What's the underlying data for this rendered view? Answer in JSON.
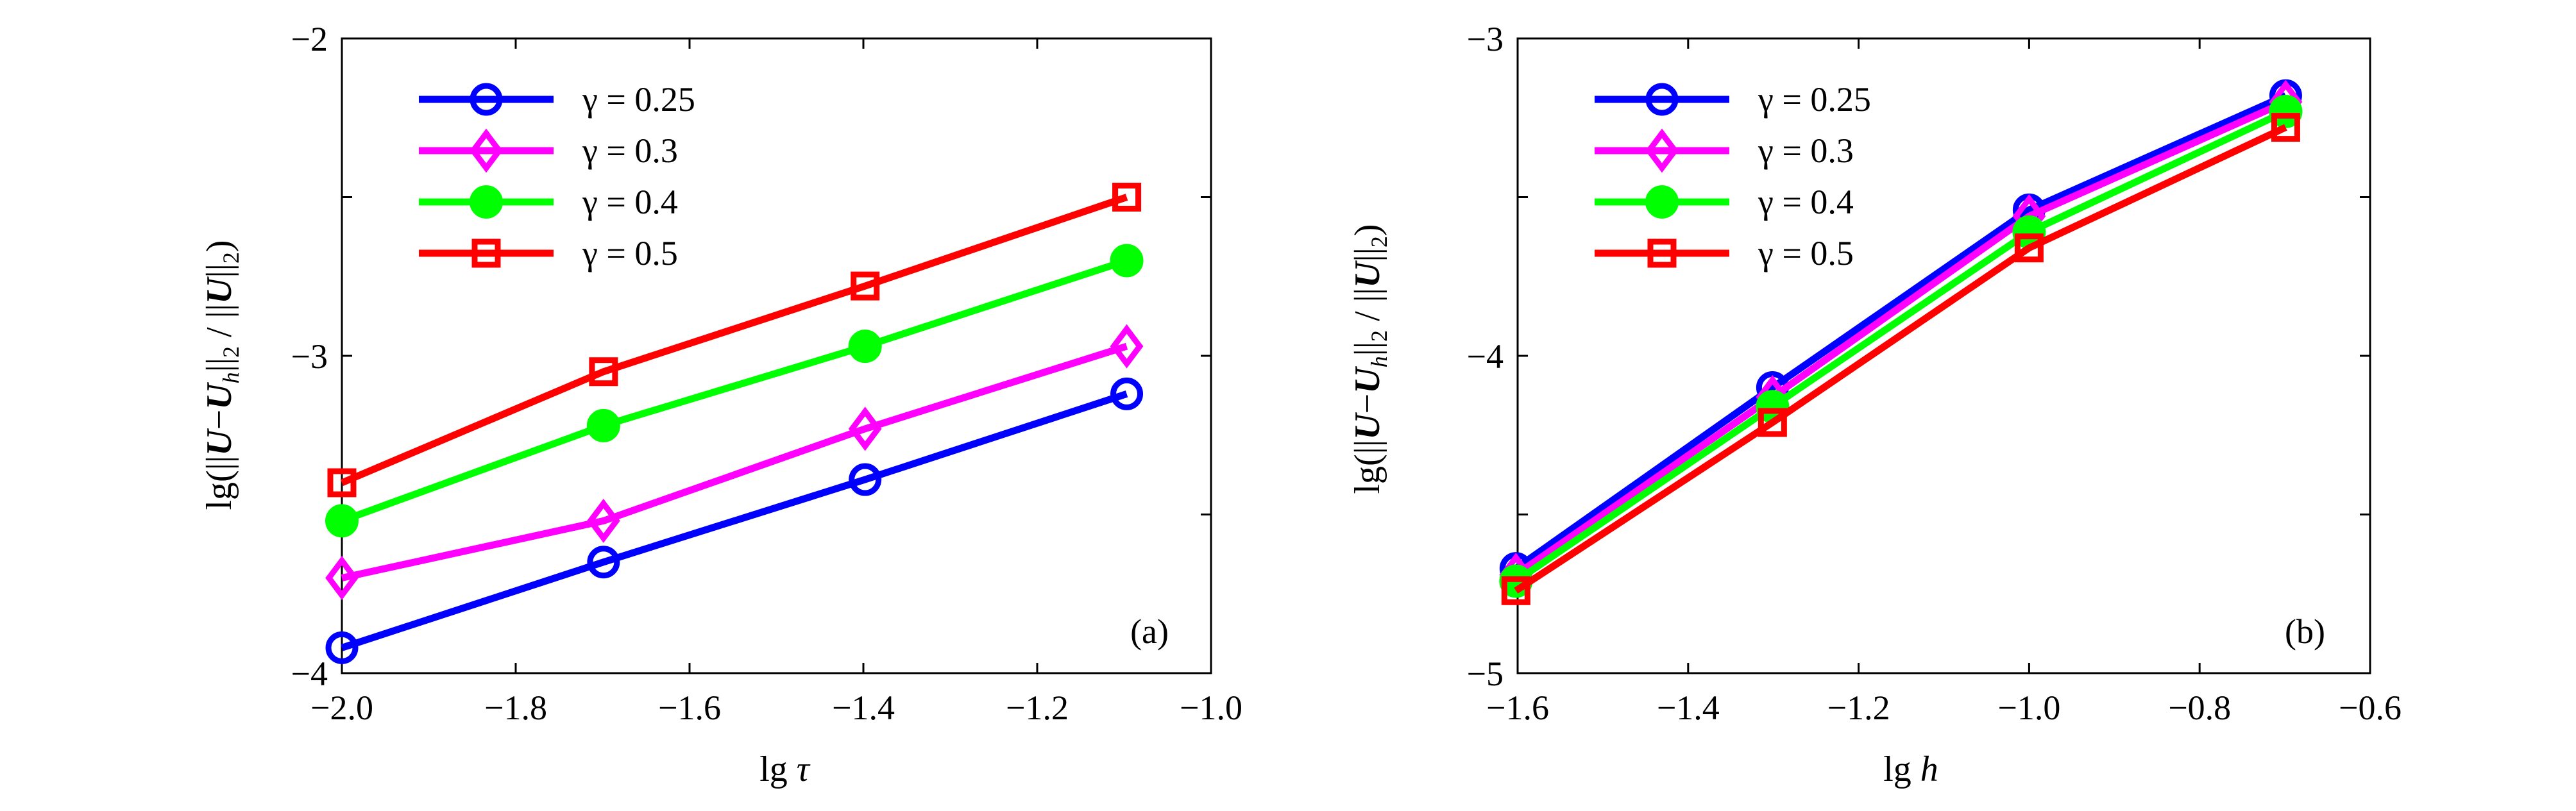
{
  "figure": {
    "panels": [
      {
        "tag": "(a)",
        "xlabel_prefix": "lg ",
        "xlabel_var": "τ"
      },
      {
        "tag": "(b)",
        "xlabel_prefix": "lg ",
        "xlabel_var": "h"
      }
    ],
    "ylabel_parts": {
      "lg": "lg(",
      "open": "||",
      "U": "U",
      "minus": "−",
      "Uh": "U",
      "h_sub": "h",
      "close": "||",
      "sub2": "2",
      "slash": " / ",
      "open2": "||",
      "U2": "U",
      "close2": "||",
      "sub2b": "2",
      "end": ")"
    }
  },
  "chart_data": [
    {
      "type": "line",
      "panel": "(a)",
      "xlabel": "lg τ",
      "ylabel": "lg(||U−U_h||_2 / ||U||_2)",
      "xlim": [
        -2.0,
        -1.0
      ],
      "ylim": [
        -4,
        -2
      ],
      "xticks": [
        -2.0,
        -1.8,
        -1.6,
        -1.4,
        -1.2,
        -1.0
      ],
      "xtick_labels": [
        "−2.0",
        "−1.8",
        "−1.6",
        "−1.4",
        "−1.2",
        "−1.0"
      ],
      "yticks": [
        -4,
        -3.5,
        -3,
        -2.5,
        -2
      ],
      "ytick_labels": [
        "−4",
        "",
        "−3",
        "",
        "−2"
      ],
      "grid": false,
      "legend_position": "top-left",
      "x": [
        -2.0,
        -1.699,
        -1.398,
        -1.097
      ],
      "series": [
        {
          "name": "γ = 0.25",
          "color": "#0000ff",
          "marker": "open-circle",
          "values": [
            -3.92,
            -3.65,
            -3.39,
            -3.12
          ]
        },
        {
          "name": "γ = 0.3",
          "color": "#ff00ff",
          "marker": "open-diamond",
          "values": [
            -3.7,
            -3.52,
            -3.23,
            -2.97
          ]
        },
        {
          "name": "γ = 0.4",
          "color": "#00ff00",
          "marker": "filled-circle",
          "values": [
            -3.52,
            -3.22,
            -2.97,
            -2.7
          ]
        },
        {
          "name": "γ = 0.5",
          "color": "#ff0000",
          "marker": "open-square",
          "values": [
            -3.4,
            -3.05,
            -2.78,
            -2.5
          ]
        }
      ]
    },
    {
      "type": "line",
      "panel": "(b)",
      "xlabel": "lg h",
      "ylabel": "lg(||U−U_h||_2 / ||U||_2)",
      "xlim": [
        -1.6,
        -0.6
      ],
      "ylim": [
        -5,
        -3
      ],
      "xticks": [
        -1.6,
        -1.4,
        -1.2,
        -1.0,
        -0.8,
        -0.6
      ],
      "xtick_labels": [
        "−1.6",
        "−1.4",
        "−1.2",
        "−1.0",
        "−0.8",
        "−0.6"
      ],
      "yticks": [
        -5,
        -4.5,
        -4,
        -3.5,
        -3
      ],
      "ytick_labels": [
        "−5",
        "",
        "−4",
        "",
        "−3"
      ],
      "grid": false,
      "legend_position": "top-left",
      "x": [
        -1.602,
        -1.301,
        -1.0,
        -0.699
      ],
      "series": [
        {
          "name": "γ = 0.25",
          "color": "#0000ff",
          "marker": "open-circle",
          "values": [
            -4.67,
            -4.1,
            -3.54,
            -3.18
          ]
        },
        {
          "name": "γ = 0.3",
          "color": "#ff00ff",
          "marker": "open-diamond",
          "values": [
            -4.69,
            -4.13,
            -3.56,
            -3.2
          ]
        },
        {
          "name": "γ = 0.4",
          "color": "#00ff00",
          "marker": "filled-circle",
          "values": [
            -4.71,
            -4.16,
            -3.61,
            -3.23
          ]
        },
        {
          "name": "γ = 0.5",
          "color": "#ff0000",
          "marker": "open-square",
          "values": [
            -4.74,
            -4.21,
            -3.66,
            -3.28
          ]
        }
      ]
    }
  ]
}
